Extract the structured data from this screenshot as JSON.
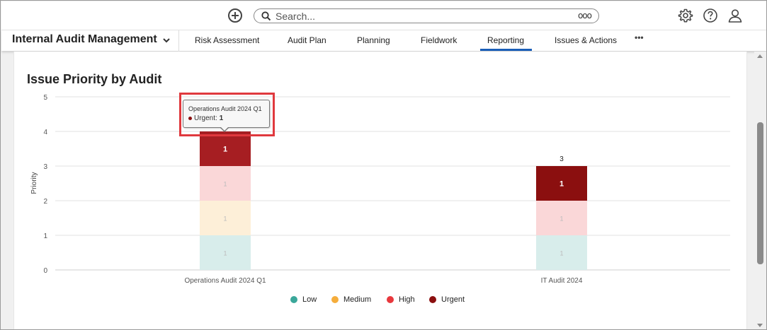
{
  "header": {
    "search_placeholder": "Search...",
    "search_options_label": "ooo"
  },
  "nav": {
    "app_title": "Internal Audit Management",
    "tabs": [
      {
        "label": "Risk Assessment"
      },
      {
        "label": "Audit Plan"
      },
      {
        "label": "Planning"
      },
      {
        "label": "Fieldwork"
      },
      {
        "label": "Reporting",
        "active": true
      },
      {
        "label": "Issues & Actions"
      }
    ],
    "more_label": "•••"
  },
  "chart_data": {
    "type": "bar",
    "stacked": true,
    "title": "Issue Priority by Audit",
    "ylabel": "Priority",
    "xlabel": "",
    "ylim": [
      0,
      5
    ],
    "yticks": [
      "0",
      "1",
      "2",
      "3",
      "4",
      "5"
    ],
    "categories": [
      "Operations Audit 2024 Q1",
      "IT Audit 2024"
    ],
    "series": [
      {
        "name": "Low",
        "color": "#3aa79a",
        "values": [
          1,
          1
        ]
      },
      {
        "name": "Medium",
        "color": "#f5ad3b",
        "values": [
          1,
          0
        ]
      },
      {
        "name": "High",
        "color": "#e8383d",
        "values": [
          1,
          1
        ]
      },
      {
        "name": "Urgent",
        "color": "#8b0f0f",
        "values": [
          1,
          1
        ]
      }
    ],
    "totals": [
      "4",
      "3"
    ],
    "segment_labels": [
      [
        "1",
        "1",
        "1",
        "1"
      ],
      [
        "1",
        "",
        "1",
        "1"
      ]
    ],
    "legend_position": "bottom",
    "grid": true
  },
  "tooltip": {
    "title": "Operations Audit 2024 Q1",
    "series_name": "Urgent:",
    "value": "1",
    "color": "#8b0f0f"
  }
}
